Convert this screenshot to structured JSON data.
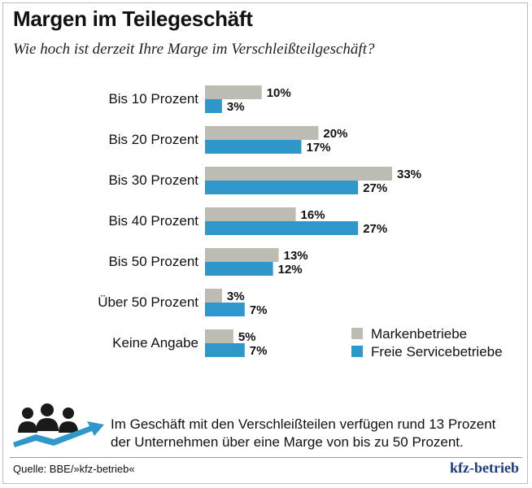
{
  "header": {
    "title": "Margen im Teilegeschäft",
    "subtitle": "Wie hoch ist derzeit Ihre Marge im Verschleißteilgeschäft?"
  },
  "colors": {
    "markenbetriebe": "#bdbcb2",
    "freie_servicebetriebe": "#2f97c9",
    "brand": "#1f3d7a"
  },
  "chart_data": {
    "type": "bar",
    "orientation": "horizontal",
    "categories": [
      "Bis 10 Prozent",
      "Bis 20 Prozent",
      "Bis 30 Prozent",
      "Bis 40 Prozent",
      "Bis 50 Prozent",
      "Über 50 Prozent",
      "Keine Angabe"
    ],
    "series": [
      {
        "name": "Markenbetriebe",
        "values": [
          10,
          20,
          33,
          16,
          13,
          3,
          5
        ],
        "labels": [
          "10%",
          "20%",
          "33%",
          "16%",
          "13%",
          "3%",
          "5%"
        ]
      },
      {
        "name": "Freie Servicebetriebe",
        "values": [
          3,
          17,
          27,
          27,
          12,
          7,
          7
        ],
        "labels": [
          "3%",
          "17%",
          "27%",
          "27%",
          "12%",
          "7%",
          "7%"
        ]
      }
    ],
    "unit": "%",
    "xlim": [
      0,
      35
    ],
    "legend_position": "bottom-right"
  },
  "footer": {
    "icon": "people-growth-icon",
    "note": "Im Geschäft mit den Verschleißteilen verfügen rund 13 Prozent der Unternehmen über eine Marge von bis zu 50 Prozent.",
    "source": "Quelle: BBE/»kfz-betrieb«",
    "brand": "kfz-betrieb"
  }
}
